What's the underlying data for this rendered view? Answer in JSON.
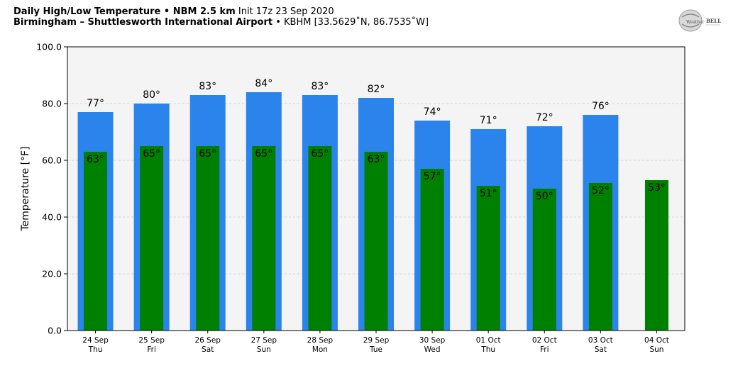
{
  "header": {
    "title_main": "Daily High/Low Temperature • NBM 2.5 km",
    "title_init": "Init 17z 23 Sep 2020",
    "location_main": "Birmingham – Shuttlesworth International Airport",
    "location_detail": "• KBHM [33.5629˚N, 86.7535˚W]"
  },
  "logo": {
    "text_left": "Weather",
    "text_right": "BELL"
  },
  "chart_data": {
    "type": "bar",
    "title": "Daily High/Low Temperature • NBM 2.5 km",
    "ylabel": "Temperature [°F]",
    "ylim": [
      0,
      100
    ],
    "yticks": [
      "0.0",
      "20.0",
      "40.0",
      "60.0",
      "80.0",
      "100.0"
    ],
    "grid": true,
    "categories": [
      {
        "date": "24 Sep",
        "day": "Thu"
      },
      {
        "date": "25 Sep",
        "day": "Fri"
      },
      {
        "date": "26 Sep",
        "day": "Sat"
      },
      {
        "date": "27 Sep",
        "day": "Sun"
      },
      {
        "date": "28 Sep",
        "day": "Mon"
      },
      {
        "date": "29 Sep",
        "day": "Tue"
      },
      {
        "date": "30 Sep",
        "day": "Wed"
      },
      {
        "date": "01 Oct",
        "day": "Thu"
      },
      {
        "date": "02 Oct",
        "day": "Fri"
      },
      {
        "date": "03 Oct",
        "day": "Sat"
      },
      {
        "date": "04 Oct",
        "day": "Sun"
      }
    ],
    "series": [
      {
        "values": [
          77,
          80,
          83,
          84,
          83,
          82,
          74,
          71,
          72,
          76,
          null
        ],
        "color": "#2b83ec"
      },
      {
        "values": [
          63,
          65,
          65,
          65,
          65,
          63,
          57,
          51,
          50,
          52,
          53
        ],
        "color": "#008000"
      }
    ],
    "value_suffix": "°"
  }
}
